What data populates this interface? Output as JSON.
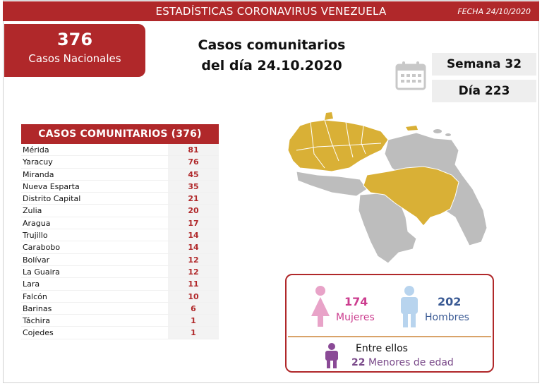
{
  "header": {
    "title": "ESTADÍSTICAS CORONAVIRUS VENEZUELA",
    "date": "FECHA 24/10/2020"
  },
  "totals": {
    "number": "376",
    "label": "Casos Nacionales"
  },
  "main_title": {
    "line1": "Casos comunitarios",
    "line2": "del día 24.10.2020"
  },
  "week": "Semana 32",
  "day": "Día 223",
  "table": {
    "header": "CASOS COMUNITARIOS (376)",
    "rows": [
      {
        "state": "Mérida",
        "value": "81"
      },
      {
        "state": "Yaracuy",
        "value": "76"
      },
      {
        "state": "Miranda",
        "value": "45"
      },
      {
        "state": "Nueva Esparta",
        "value": "35"
      },
      {
        "state": "Distrito Capital",
        "value": "21"
      },
      {
        "state": "Zulia",
        "value": "20"
      },
      {
        "state": "Aragua",
        "value": "17"
      },
      {
        "state": "Trujillo",
        "value": "14"
      },
      {
        "state": "Carabobo",
        "value": "14"
      },
      {
        "state": "Bolívar",
        "value": "12"
      },
      {
        "state": "La Guaira",
        "value": "12"
      },
      {
        "state": "Lara",
        "value": "11"
      },
      {
        "state": "Falcón",
        "value": "10"
      },
      {
        "state": "Barinas",
        "value": "6"
      },
      {
        "state": "Táchira",
        "value": "1"
      },
      {
        "state": "Cojedes",
        "value": "1"
      }
    ]
  },
  "gender": {
    "female_count": "174",
    "female_label": "Mujeres",
    "male_count": "202",
    "male_label": "Hombres",
    "among_label": "Entre ellos",
    "minors_count": "22",
    "minors_label": "Menores de edad"
  },
  "colors": {
    "brand_red": "#b0282a",
    "map_highlight": "#d9b036",
    "map_base": "#bdbdbd",
    "female": "#e8a3c8",
    "male": "#b8d4ee",
    "child": "#8a4a96"
  },
  "icons": [
    "calendar-icon",
    "female-icon",
    "male-icon",
    "child-icon"
  ]
}
